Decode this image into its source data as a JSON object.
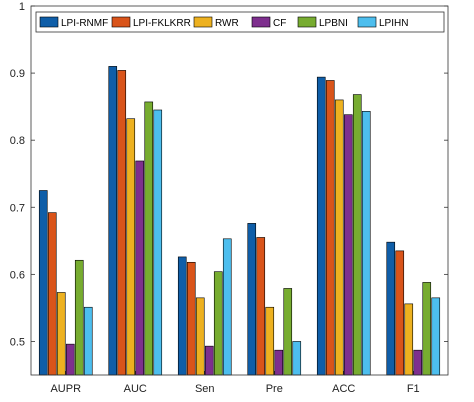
{
  "chart_data": {
    "type": "bar",
    "title": "",
    "xlabel": "",
    "ylabel": "",
    "categories": [
      "AUPR",
      "AUC",
      "Sen",
      "Pre",
      "ACC",
      "F1"
    ],
    "ylim": [
      0.45,
      1.0
    ],
    "yticks": [
      0.5,
      0.6,
      0.7,
      0.8,
      0.9,
      1
    ],
    "ytick_labels": [
      "0.5",
      "0.6",
      "0.7",
      "0.8",
      "0.9",
      "1"
    ],
    "grid": false,
    "legend": {
      "placement": "top",
      "columns": 6
    },
    "series": [
      {
        "name": "LPI-RNMF",
        "color": "#0f5ea8",
        "values": [
          0.725,
          0.91,
          0.626,
          0.676,
          0.894,
          0.648
        ]
      },
      {
        "name": "LPI-FKLKRR",
        "color": "#d9541a",
        "values": [
          0.692,
          0.904,
          0.618,
          0.655,
          0.889,
          0.635
        ]
      },
      {
        "name": "RWR",
        "color": "#edb120",
        "values": [
          0.573,
          0.832,
          0.565,
          0.551,
          0.86,
          0.556
        ]
      },
      {
        "name": "CF",
        "color": "#7e2f8e",
        "values": [
          0.496,
          0.769,
          0.493,
          0.487,
          0.838,
          0.487
        ]
      },
      {
        "name": "LPBNI",
        "color": "#77ac30",
        "values": [
          0.621,
          0.857,
          0.604,
          0.579,
          0.868,
          0.588
        ]
      },
      {
        "name": "LPIHN",
        "color": "#4dbeee",
        "values": [
          0.551,
          0.845,
          0.653,
          0.5,
          0.843,
          0.565
        ]
      }
    ]
  }
}
